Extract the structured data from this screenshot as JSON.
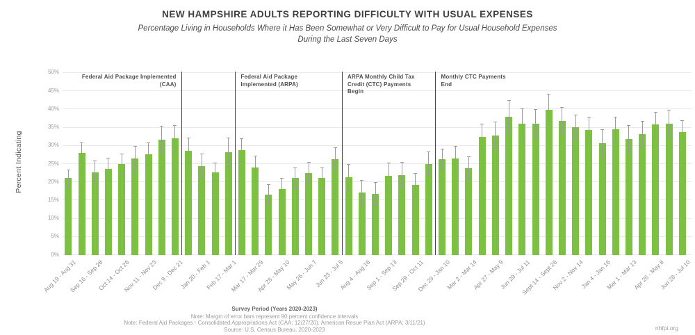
{
  "chart_data": {
    "type": "bar",
    "title": "NEW HAMPSHIRE ADULTS REPORTING DIFFICULTY WITH USUAL EXPENSES",
    "subtitle_line1": "Percentage Living in Households Where it Has Been Somewhat or Very Difficult to Pay for Usual Household Expenses",
    "subtitle_line2": "During the Last Seven Days",
    "ylabel": "Percent Indicating",
    "xlabel": "Survey Period (Years 2020-2023)",
    "ylim": [
      0,
      50
    ],
    "ytick_step": 5,
    "ytick_suffix": "%",
    "grid": true,
    "legend": "none",
    "bar_color": "#7CC142",
    "error_color": "#9b9b9b",
    "error_note": "error bars = 90 percent confidence intervals",
    "bars": [
      {
        "label": "Aug 19 - Aug 31",
        "value": 21.0,
        "moe": 2.3
      },
      {
        "label": "",
        "value": 28.0,
        "moe": 2.9
      },
      {
        "label": "Sep 16 - Sep 28",
        "value": 22.7,
        "moe": 3.2
      },
      {
        "label": "",
        "value": 23.5,
        "moe": 3.1
      },
      {
        "label": "Oct 14 - Oct 26",
        "value": 25.0,
        "moe": 2.8
      },
      {
        "label": "",
        "value": 26.4,
        "moe": 3.4
      },
      {
        "label": "Nov 11 - Nov 23",
        "value": 27.6,
        "moe": 3.3
      },
      {
        "label": "",
        "value": 31.6,
        "moe": 3.8
      },
      {
        "label": "Dec 9 - Dec 21",
        "value": 31.9,
        "moe": 3.7
      },
      {
        "label": "",
        "value": 28.6,
        "moe": 3.6
      },
      {
        "label": "Jan 20 - Feb 1",
        "value": 24.4,
        "moe": 3.3
      },
      {
        "label": "",
        "value": 22.6,
        "moe": 2.7
      },
      {
        "label": "Feb 17 - Mar 1",
        "value": 28.1,
        "moe": 4.0
      },
      {
        "label": "",
        "value": 28.7,
        "moe": 3.3
      },
      {
        "label": "Mar 17 - Mar 29",
        "value": 24.0,
        "moe": 3.2
      },
      {
        "label": "",
        "value": 16.6,
        "moe": 2.7
      },
      {
        "label": "Apr 28 - May 10",
        "value": 18.1,
        "moe": 2.9
      },
      {
        "label": "",
        "value": 21.0,
        "moe": 3.0
      },
      {
        "label": "May 26 - Jun 7",
        "value": 22.4,
        "moe": 3.1
      },
      {
        "label": "",
        "value": 21.0,
        "moe": 3.0
      },
      {
        "label": "Jun 23 - Jul 5",
        "value": 26.3,
        "moe": 3.2
      },
      {
        "label": "",
        "value": 21.2,
        "moe": 3.7
      },
      {
        "label": "Aug 4 - Aug 16",
        "value": 17.1,
        "moe": 3.4
      },
      {
        "label": "",
        "value": 16.7,
        "moe": 3.2
      },
      {
        "label": "Sep 1 - Sep 13",
        "value": 21.7,
        "moe": 3.5
      },
      {
        "label": "",
        "value": 21.9,
        "moe": 3.5
      },
      {
        "label": "Sep 29 - Oct 11",
        "value": 19.2,
        "moe": 3.2
      },
      {
        "label": "",
        "value": 25.0,
        "moe": 3.3
      },
      {
        "label": "Dec 29 - Jan 10",
        "value": 26.2,
        "moe": 2.9
      },
      {
        "label": "",
        "value": 26.5,
        "moe": 3.4
      },
      {
        "label": "Mar 2 - Mar 14",
        "value": 23.8,
        "moe": 3.2
      },
      {
        "label": "",
        "value": 32.3,
        "moe": 3.6
      },
      {
        "label": "Apr 27 - May 9",
        "value": 32.7,
        "moe": 3.8
      },
      {
        "label": "",
        "value": 37.8,
        "moe": 4.6
      },
      {
        "label": "Jun 29 - Jul 11",
        "value": 35.9,
        "moe": 4.3
      },
      {
        "label": "",
        "value": 36.0,
        "moe": 4.0
      },
      {
        "label": "Sept 14 - Sept 26",
        "value": 39.8,
        "moe": 4.3
      },
      {
        "label": "",
        "value": 36.8,
        "moe": 3.7
      },
      {
        "label": "Nov 2 - Nov 14",
        "value": 35.0,
        "moe": 3.5
      },
      {
        "label": "",
        "value": 34.2,
        "moe": 3.7
      },
      {
        "label": "Jan 4 - Jan 16",
        "value": 30.6,
        "moe": 3.8
      },
      {
        "label": "",
        "value": 34.4,
        "moe": 3.4
      },
      {
        "label": "Mar 1 - Mar 13",
        "value": 31.7,
        "moe": 3.8
      },
      {
        "label": "",
        "value": 33.1,
        "moe": 3.7
      },
      {
        "label": "Apr 26 - May 8",
        "value": 35.7,
        "moe": 3.5
      },
      {
        "label": "",
        "value": 36.0,
        "moe": 3.7
      },
      {
        "label": "Jun 28 - Jul 10",
        "value": 33.6,
        "moe": 3.3
      }
    ],
    "events": [
      {
        "after_bar": 9,
        "align": "right",
        "lines": [
          "Federal Aid Package Implemented",
          "(CAA)"
        ]
      },
      {
        "after_bar": 13,
        "align": "left",
        "lines": [
          "Federal Aid Package",
          "Implemented (ARPA)"
        ]
      },
      {
        "after_bar": 21,
        "align": "left",
        "lines": [
          "ARPA Monthly Child Tax",
          "Credit (CTC) Payments",
          "Begin"
        ]
      },
      {
        "after_bar": 28,
        "align": "left",
        "lines": [
          "Monthly CTC Payments",
          "End"
        ]
      }
    ]
  },
  "footer": {
    "note_moe": "Note: Margin of error bars represent 90 percent confidence intervals",
    "note_aid": "Note: Federal Aid Packages - Consolidated Appropriations Act (CAA; 12/27/20), American Resue Plan Act (ARPA; 3/11/21)",
    "source": "Source: U.S. Census Bureau, 2020-2023",
    "branding": "nhfpi.org"
  }
}
